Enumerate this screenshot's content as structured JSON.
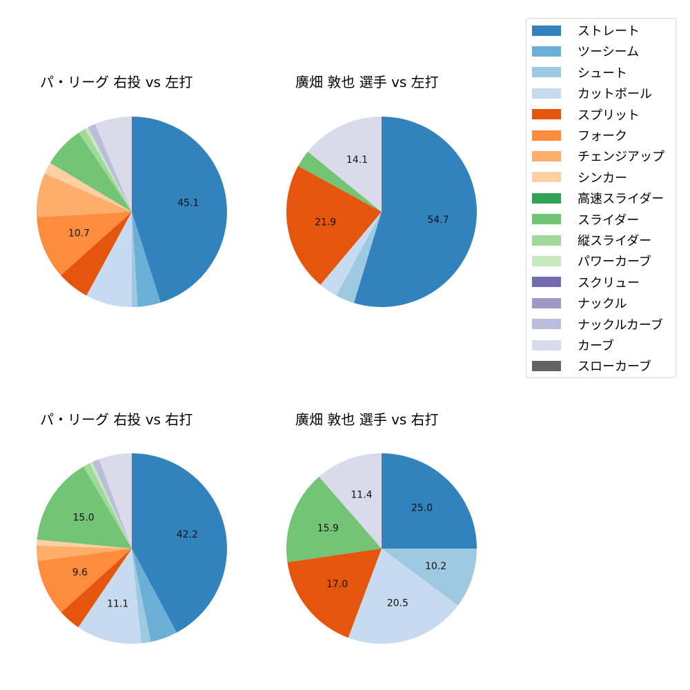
{
  "legend": {
    "items": [
      {
        "label": "ストレート",
        "color": "#3182bd"
      },
      {
        "label": "ツーシーム",
        "color": "#6baed6"
      },
      {
        "label": "シュート",
        "color": "#9ecae1"
      },
      {
        "label": "カットボール",
        "color": "#c6dbef"
      },
      {
        "label": "スプリット",
        "color": "#e6550d"
      },
      {
        "label": "フォーク",
        "color": "#fd8d3c"
      },
      {
        "label": "チェンジアップ",
        "color": "#fdae6b"
      },
      {
        "label": "シンカー",
        "color": "#fdd0a2"
      },
      {
        "label": "高速スライダー",
        "color": "#31a354"
      },
      {
        "label": "スライダー",
        "color": "#74c476"
      },
      {
        "label": "縦スライダー",
        "color": "#a1d99b"
      },
      {
        "label": "パワーカーブ",
        "color": "#c7e9c0"
      },
      {
        "label": "スクリュー",
        "color": "#756bb1"
      },
      {
        "label": "ナックル",
        "color": "#9e9ac8"
      },
      {
        "label": "ナックルカーブ",
        "color": "#bcbddc"
      },
      {
        "label": "カーブ",
        "color": "#dadaeb"
      },
      {
        "label": "スローカーブ",
        "color": "#636363"
      }
    ]
  },
  "chart_data": [
    {
      "type": "pie",
      "title": "パ・リーグ 右投 vs 左打",
      "categories": [
        "ストレート",
        "ツーシーム",
        "シュート",
        "カットボール",
        "スプリット",
        "フォーク",
        "チェンジアップ",
        "シンカー",
        "スライダー",
        "縦スライダー",
        "パワーカーブ",
        "ナックルカーブ",
        "カーブ"
      ],
      "values": [
        45.1,
        3.9,
        1.0,
        7.9,
        5.5,
        10.7,
        7.5,
        2.0,
        7.0,
        1.2,
        0.6,
        1.3,
        6.3
      ],
      "labels_shown": [
        "45.1",
        "",
        "",
        "",
        "",
        "10.7",
        "",
        "",
        "",
        "",
        "",
        "",
        ""
      ]
    },
    {
      "type": "pie",
      "title": "廣畑 敦也 選手 vs 左打",
      "categories": [
        "ストレート",
        "シュート",
        "カットボール",
        "スプリット",
        "スライダー",
        "カーブ"
      ],
      "values": [
        54.7,
        3.2,
        3.2,
        21.9,
        2.9,
        14.1
      ],
      "labels_shown": [
        "54.7",
        "",
        "",
        "21.9",
        "",
        "14.1"
      ]
    },
    {
      "type": "pie",
      "title": "パ・リーグ 右投 vs 右打",
      "categories": [
        "ストレート",
        "ツーシーム",
        "シュート",
        "カットボール",
        "スプリット",
        "フォーク",
        "チェンジアップ",
        "シンカー",
        "スライダー",
        "縦スライダー",
        "パワーカーブ",
        "ナックルカーブ",
        "カーブ"
      ],
      "values": [
        42.2,
        4.6,
        1.6,
        11.1,
        3.8,
        9.6,
        2.6,
        1.0,
        15.0,
        1.2,
        0.5,
        1.2,
        5.6
      ],
      "labels_shown": [
        "42.2",
        "",
        "",
        "11.1",
        "",
        "9.6",
        "",
        "",
        "15.0",
        "",
        "",
        "",
        ""
      ]
    },
    {
      "type": "pie",
      "title": "廣畑 敦也 選手 vs 右打",
      "categories": [
        "ストレート",
        "シュート",
        "カットボール",
        "スプリット",
        "スライダー",
        "カーブ"
      ],
      "values": [
        25.0,
        10.2,
        20.5,
        17.0,
        15.9,
        11.4
      ],
      "labels_shown": [
        "25.0",
        "10.2",
        "20.5",
        "17.0",
        "15.9",
        "11.4"
      ]
    }
  ]
}
